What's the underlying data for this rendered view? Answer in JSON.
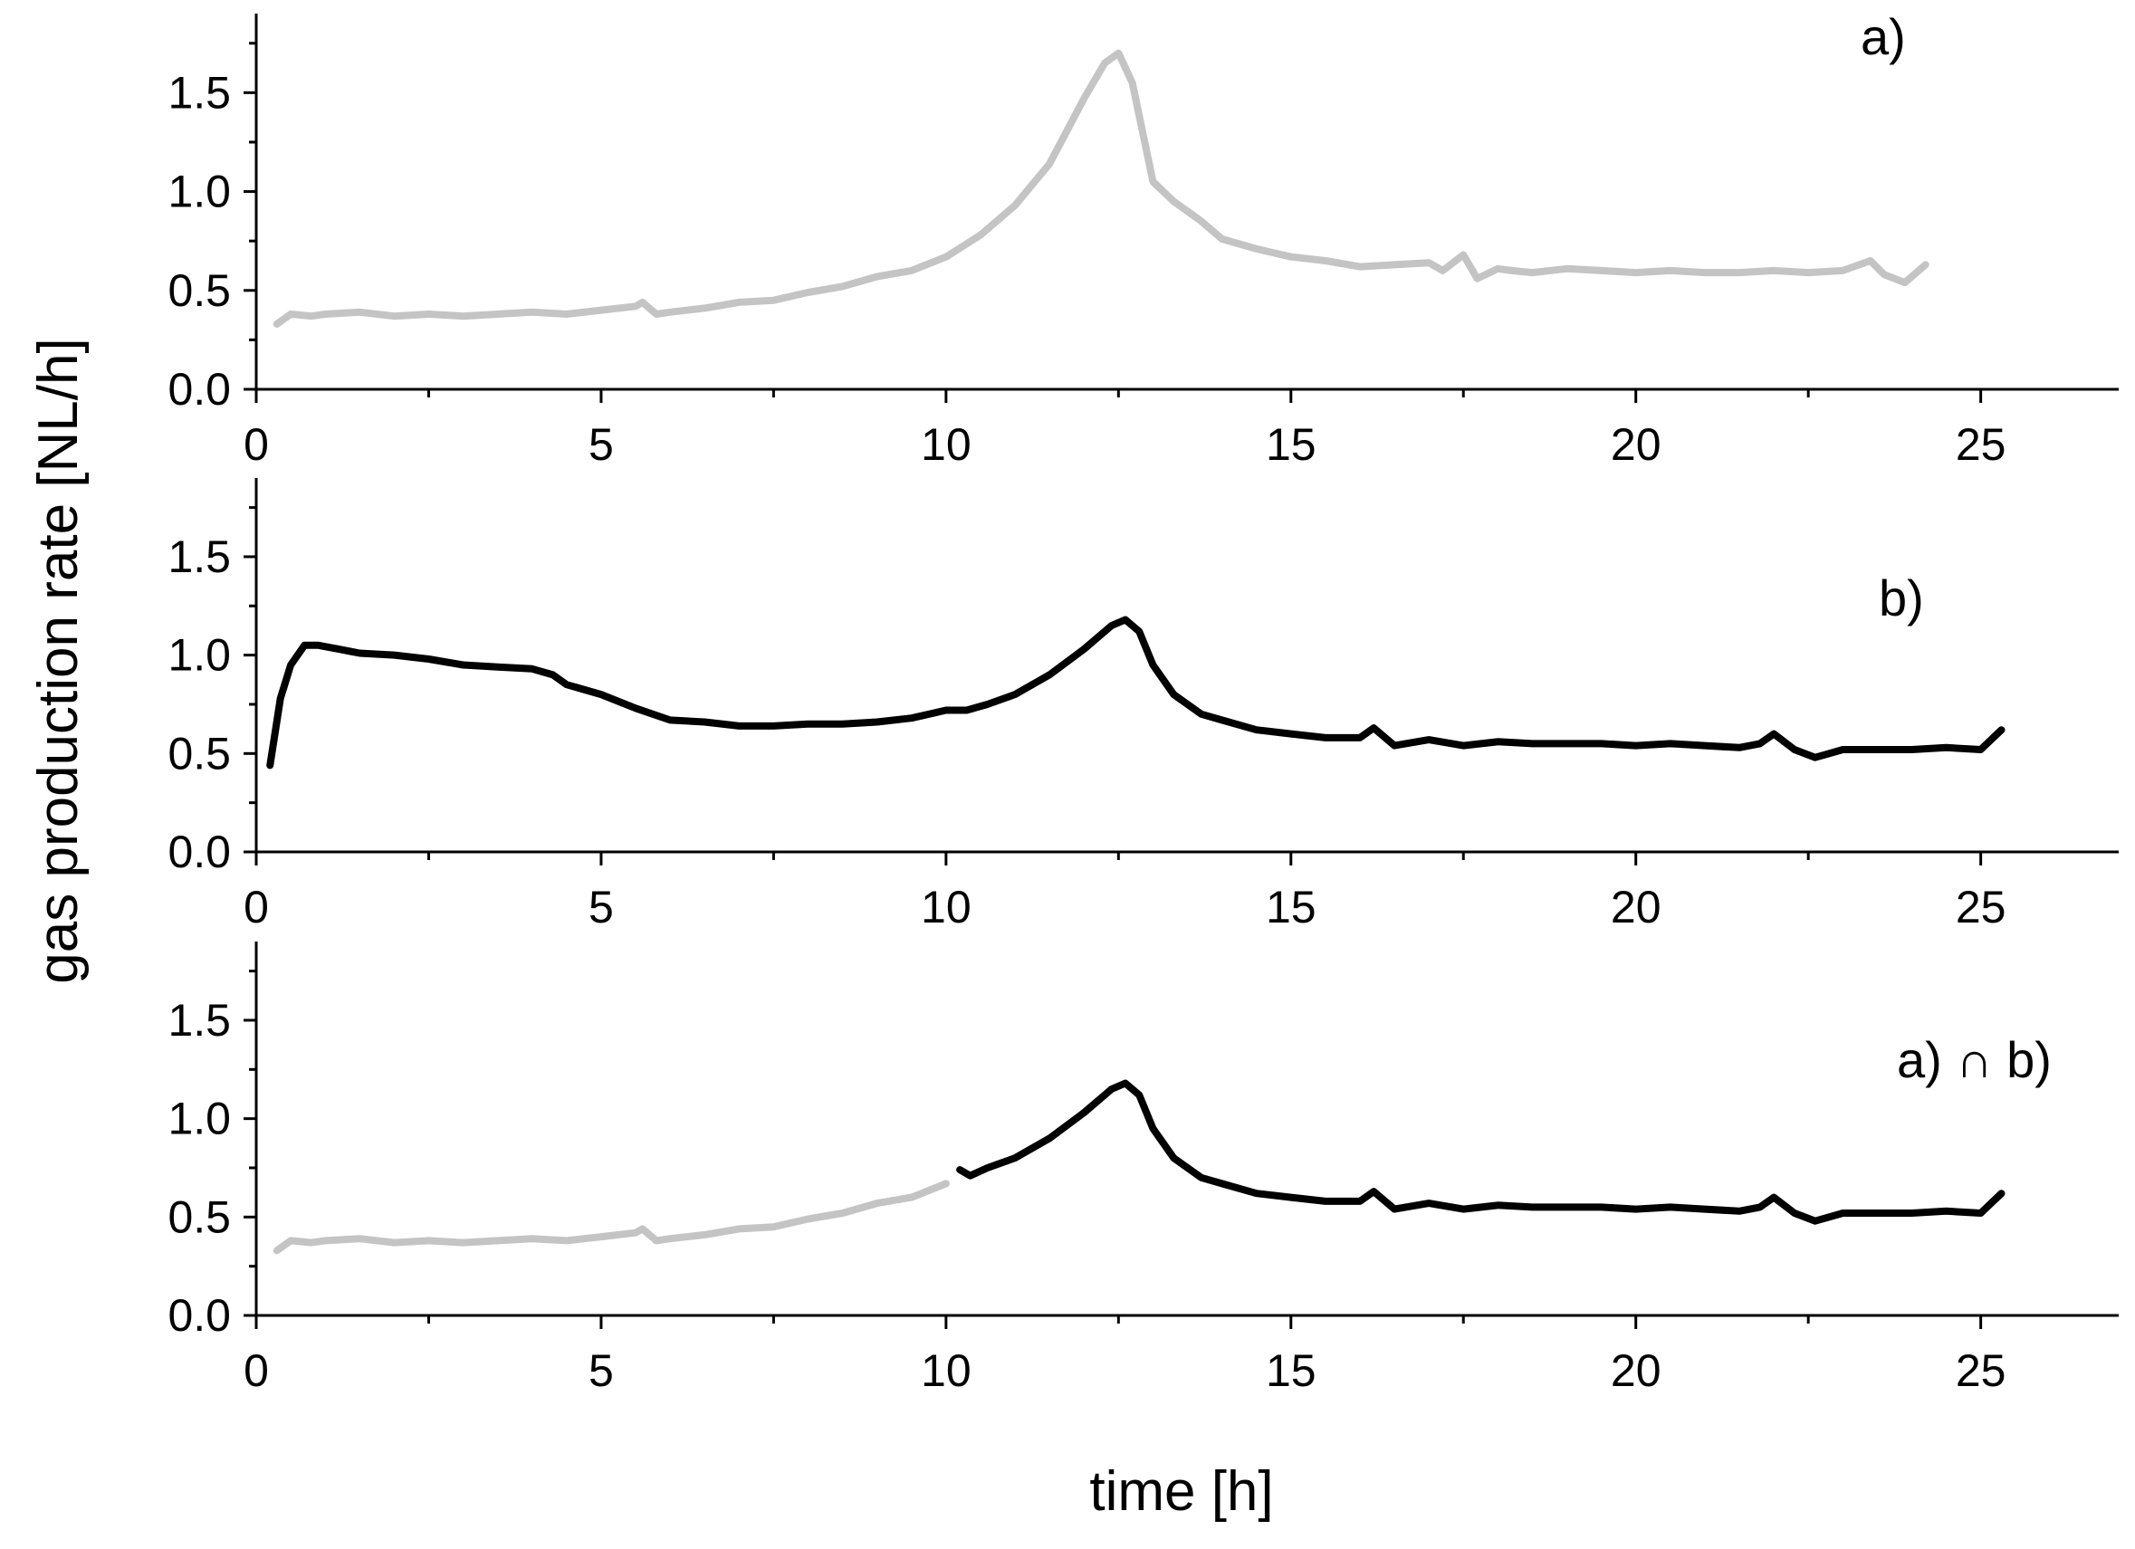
{
  "figure": {
    "ylabel": "gas production rate [NL/h]",
    "xlabel": "time [h]"
  },
  "chart_data": [
    {
      "type": "line",
      "panel": "a)",
      "xlim": [
        0,
        27
      ],
      "ylim": [
        0,
        1.9
      ],
      "x_ticks": [
        0,
        5,
        10,
        15,
        20,
        25
      ],
      "x_tick_labels": [
        "0",
        "5",
        "10",
        "15",
        "20",
        "25"
      ],
      "y_ticks": [
        0,
        0.5,
        1.0,
        1.5
      ],
      "y_tick_labels": [
        "0.0",
        "0.5",
        "1.0",
        "1.5"
      ],
      "grid": false,
      "colors": {
        "series_a": "#c4c4c4",
        "series_b": "#000000"
      },
      "series": [
        {
          "color": "#c4c4c4",
          "x": [
            0.3,
            0.5,
            0.8,
            1.0,
            1.5,
            2.0,
            2.5,
            3.0,
            3.5,
            4.0,
            4.5,
            5.0,
            5.5,
            5.6,
            5.8,
            6.0,
            6.5,
            7.0,
            7.5,
            8.0,
            8.5,
            9.0,
            9.5,
            10.0,
            10.5,
            11.0,
            11.5,
            12.0,
            12.3,
            12.5,
            12.7,
            13.0,
            13.3,
            13.7,
            14.0,
            14.5,
            15.0,
            15.5,
            16.0,
            16.5,
            17.0,
            17.2,
            17.5,
            17.7,
            18.0,
            18.2,
            18.5,
            19.0,
            19.5,
            20.0,
            20.5,
            21.0,
            21.5,
            22.0,
            22.5,
            23.0,
            23.4,
            23.6,
            23.9,
            24.2
          ],
          "y": [
            0.33,
            0.38,
            0.37,
            0.38,
            0.39,
            0.37,
            0.38,
            0.37,
            0.38,
            0.39,
            0.38,
            0.4,
            0.42,
            0.44,
            0.38,
            0.39,
            0.41,
            0.44,
            0.45,
            0.49,
            0.52,
            0.57,
            0.6,
            0.67,
            0.78,
            0.93,
            1.14,
            1.47,
            1.65,
            1.7,
            1.55,
            1.05,
            0.95,
            0.85,
            0.76,
            0.71,
            0.67,
            0.65,
            0.62,
            0.63,
            0.64,
            0.6,
            0.68,
            0.56,
            0.61,
            0.6,
            0.59,
            0.61,
            0.6,
            0.59,
            0.6,
            0.59,
            0.59,
            0.6,
            0.59,
            0.6,
            0.65,
            0.58,
            0.54,
            0.63
          ]
        }
      ]
    },
    {
      "type": "line",
      "panel": "b)",
      "xlim": [
        0,
        27
      ],
      "ylim": [
        0,
        1.9
      ],
      "x_ticks": [
        0,
        5,
        10,
        15,
        20,
        25
      ],
      "x_tick_labels": [
        "0",
        "5",
        "10",
        "15",
        "20",
        "25"
      ],
      "y_ticks": [
        0,
        0.5,
        1.0,
        1.5
      ],
      "y_tick_labels": [
        "0.0",
        "0.5",
        "1.0",
        "1.5"
      ],
      "grid": false,
      "series": [
        {
          "color": "#000000",
          "x": [
            0.2,
            0.35,
            0.5,
            0.7,
            0.9,
            1.2,
            1.5,
            2.0,
            2.5,
            3.0,
            3.5,
            4.0,
            4.3,
            4.5,
            5.0,
            5.5,
            6.0,
            6.5,
            7.0,
            7.5,
            8.0,
            8.5,
            9.0,
            9.5,
            10.0,
            10.3,
            10.6,
            11.0,
            11.5,
            12.0,
            12.4,
            12.6,
            12.8,
            13.0,
            13.3,
            13.7,
            14.0,
            14.5,
            15.0,
            15.5,
            16.0,
            16.2,
            16.5,
            17.0,
            17.5,
            18.0,
            18.5,
            19.0,
            19.5,
            20.0,
            20.5,
            21.0,
            21.5,
            21.8,
            22.0,
            22.3,
            22.6,
            23.0,
            23.5,
            24.0,
            24.5,
            25.0,
            25.3
          ],
          "y": [
            0.44,
            0.78,
            0.95,
            1.05,
            1.05,
            1.03,
            1.01,
            1.0,
            0.98,
            0.95,
            0.94,
            0.93,
            0.9,
            0.85,
            0.8,
            0.73,
            0.67,
            0.66,
            0.64,
            0.64,
            0.65,
            0.65,
            0.66,
            0.68,
            0.72,
            0.72,
            0.75,
            0.8,
            0.9,
            1.03,
            1.15,
            1.18,
            1.12,
            0.95,
            0.8,
            0.7,
            0.67,
            0.62,
            0.6,
            0.58,
            0.58,
            0.63,
            0.54,
            0.57,
            0.54,
            0.56,
            0.55,
            0.55,
            0.55,
            0.54,
            0.55,
            0.54,
            0.53,
            0.55,
            0.6,
            0.52,
            0.48,
            0.52,
            0.52,
            0.52,
            0.53,
            0.52,
            0.62
          ]
        }
      ]
    },
    {
      "type": "line",
      "panel": "a) ∩ b)",
      "xlim": [
        0,
        27
      ],
      "ylim": [
        0,
        1.9
      ],
      "x_ticks": [
        0,
        5,
        10,
        15,
        20,
        25
      ],
      "x_tick_labels": [
        "0",
        "5",
        "10",
        "15",
        "20",
        "25"
      ],
      "y_ticks": [
        0,
        0.5,
        1.0,
        1.5
      ],
      "y_tick_labels": [
        "0.0",
        "0.5",
        "1.0",
        "1.5"
      ],
      "grid": false,
      "series": [
        {
          "color": "#c4c4c4",
          "x": [
            0.3,
            0.5,
            0.8,
            1.0,
            1.5,
            2.0,
            2.5,
            3.0,
            3.5,
            4.0,
            4.5,
            5.0,
            5.5,
            5.6,
            5.8,
            6.0,
            6.5,
            7.0,
            7.5,
            8.0,
            8.5,
            9.0,
            9.5,
            10.0
          ],
          "y": [
            0.33,
            0.38,
            0.37,
            0.38,
            0.39,
            0.37,
            0.38,
            0.37,
            0.38,
            0.39,
            0.38,
            0.4,
            0.42,
            0.44,
            0.38,
            0.39,
            0.41,
            0.44,
            0.45,
            0.49,
            0.52,
            0.57,
            0.6,
            0.67
          ]
        },
        {
          "color": "#000000",
          "x": [
            10.2,
            10.35,
            10.6,
            11.0,
            11.5,
            12.0,
            12.4,
            12.6,
            12.8,
            13.0,
            13.3,
            13.7,
            14.0,
            14.5,
            15.0,
            15.5,
            16.0,
            16.2,
            16.5,
            17.0,
            17.5,
            18.0,
            18.5,
            19.0,
            19.5,
            20.0,
            20.5,
            21.0,
            21.5,
            21.8,
            22.0,
            22.3,
            22.6,
            23.0,
            23.5,
            24.0,
            24.5,
            25.0,
            25.3
          ],
          "y": [
            0.74,
            0.71,
            0.75,
            0.8,
            0.9,
            1.03,
            1.15,
            1.18,
            1.12,
            0.95,
            0.8,
            0.7,
            0.67,
            0.62,
            0.6,
            0.58,
            0.58,
            0.63,
            0.54,
            0.57,
            0.54,
            0.56,
            0.55,
            0.55,
            0.55,
            0.54,
            0.55,
            0.54,
            0.53,
            0.55,
            0.6,
            0.52,
            0.48,
            0.52,
            0.52,
            0.52,
            0.53,
            0.52,
            0.62
          ]
        }
      ]
    }
  ]
}
